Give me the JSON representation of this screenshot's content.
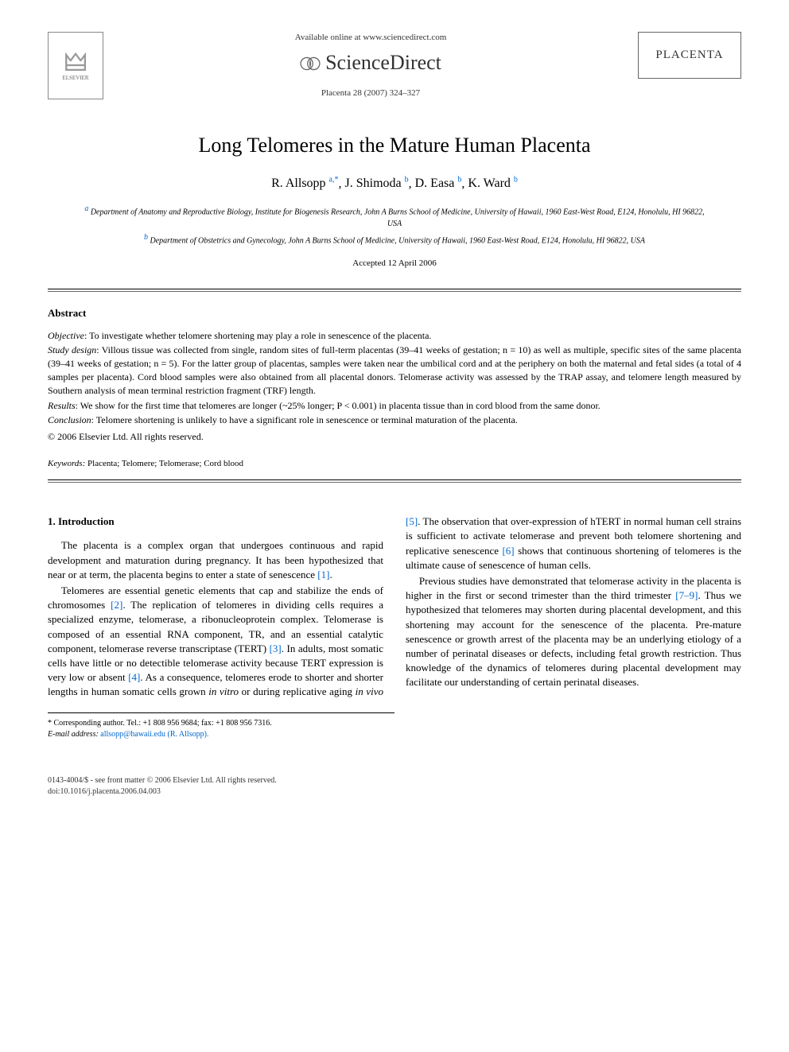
{
  "header": {
    "available_text": "Available online at www.sciencedirect.com",
    "sciencedirect": "ScienceDirect",
    "elsevier_label": "ELSEVIER",
    "journal_box": "PLACENTA",
    "citation": "Placenta 28 (2007) 324–327"
  },
  "title": "Long Telomeres in the Mature Human Placenta",
  "authors": [
    {
      "name": "R. Allsopp",
      "sup": "a,*"
    },
    {
      "name": "J. Shimoda",
      "sup": "b"
    },
    {
      "name": "D. Easa",
      "sup": "b"
    },
    {
      "name": "K. Ward",
      "sup": "b"
    }
  ],
  "affiliations": {
    "a": "Department of Anatomy and Reproductive Biology, Institute for Biogenesis Research, John A Burns School of Medicine, University of Hawaii, 1960 East-West Road, E124, Honolulu, HI 96822, USA",
    "b": "Department of Obstetrics and Gynecology, John A Burns School of Medicine, University of Hawaii, 1960 East-West Road, E124, Honolulu, HI 96822, USA"
  },
  "accepted": "Accepted 12 April 2006",
  "abstract": {
    "heading": "Abstract",
    "objective_lead": "Objective",
    "objective": ": To investigate whether telomere shortening may play a role in senescence of the placenta.",
    "design_lead": "Study design",
    "design": ": Villous tissue was collected from single, random sites of full-term placentas (39–41 weeks of gestation; n = 10) as well as multiple, specific sites of the same placenta (39–41 weeks of gestation; n = 5). For the latter group of placentas, samples were taken near the umbilical cord and at the periphery on both the maternal and fetal sides (a total of 4 samples per placenta). Cord blood samples were also obtained from all placental donors. Telomerase activity was assessed by the TRAP assay, and telomere length measured by Southern analysis of mean terminal restriction fragment (TRF) length.",
    "results_lead": "Results",
    "results": ": We show for the first time that telomeres are longer (~25% longer; P < 0.001) in placenta tissue than in cord blood from the same donor.",
    "conclusion_lead": "Conclusion",
    "conclusion": ": Telomere shortening is unlikely to have a significant role in senescence or terminal maturation of the placenta.",
    "copyright": "© 2006 Elsevier Ltd. All rights reserved."
  },
  "keywords_label": "Keywords:",
  "keywords": " Placenta; Telomere; Telomerase; Cord blood",
  "section1": {
    "heading": "1. Introduction",
    "p1": "The placenta is a complex organ that undergoes continuous and rapid development and maturation during pregnancy. It has been hypothesized that near or at term, the placenta begins to enter a state of senescence [1].",
    "p2": "Telomeres are essential genetic elements that cap and stabilize the ends of chromosomes [2]. The replication of telomeres in dividing cells requires a specialized enzyme, telomerase, a ribonucleoprotein complex. Telomerase is composed of an essential RNA component, TR, and an essential catalytic component, telomerase reverse transcriptase (TERT) [3]. In adults, most somatic cells have little or no detectible telomerase activity because TERT expression is very low or absent [4]. As a consequence, telomeres erode to shorter and shorter lengths in human somatic cells grown in vitro or during replicative aging in vivo [5]. The observation that over-expression of hTERT in normal human cell strains is sufficient to activate telomerase and prevent both telomere shortening and replicative senescence [6] shows that continuous shortening of telomeres is the ultimate cause of senescence of human cells.",
    "p3": "Previous studies have demonstrated that telomerase activity in the placenta is higher in the first or second trimester than the third trimester [7–9]. Thus we hypothesized that telomeres may shorten during placental development, and this shortening may account for the senescence of the placenta. Pre-mature senescence or growth arrest of the placenta may be an underlying etiology of a number of perinatal diseases or defects, including fetal growth restriction. Thus knowledge of the dynamics of telomeres during placental development may facilitate our understanding of certain perinatal diseases."
  },
  "footnote": {
    "corresponding": "* Corresponding author. Tel.: +1 808 956 9684; fax: +1 808 956 7316.",
    "email_label": "E-mail address:",
    "email": " allsopp@hawaii.edu (R. Allsopp)."
  },
  "footer": {
    "line1": "0143-4004/$ - see front matter © 2006 Elsevier Ltd. All rights reserved.",
    "line2": "doi:10.1016/j.placenta.2006.04.003"
  },
  "colors": {
    "link": "#0066cc",
    "text": "#000000",
    "background": "#ffffff"
  }
}
